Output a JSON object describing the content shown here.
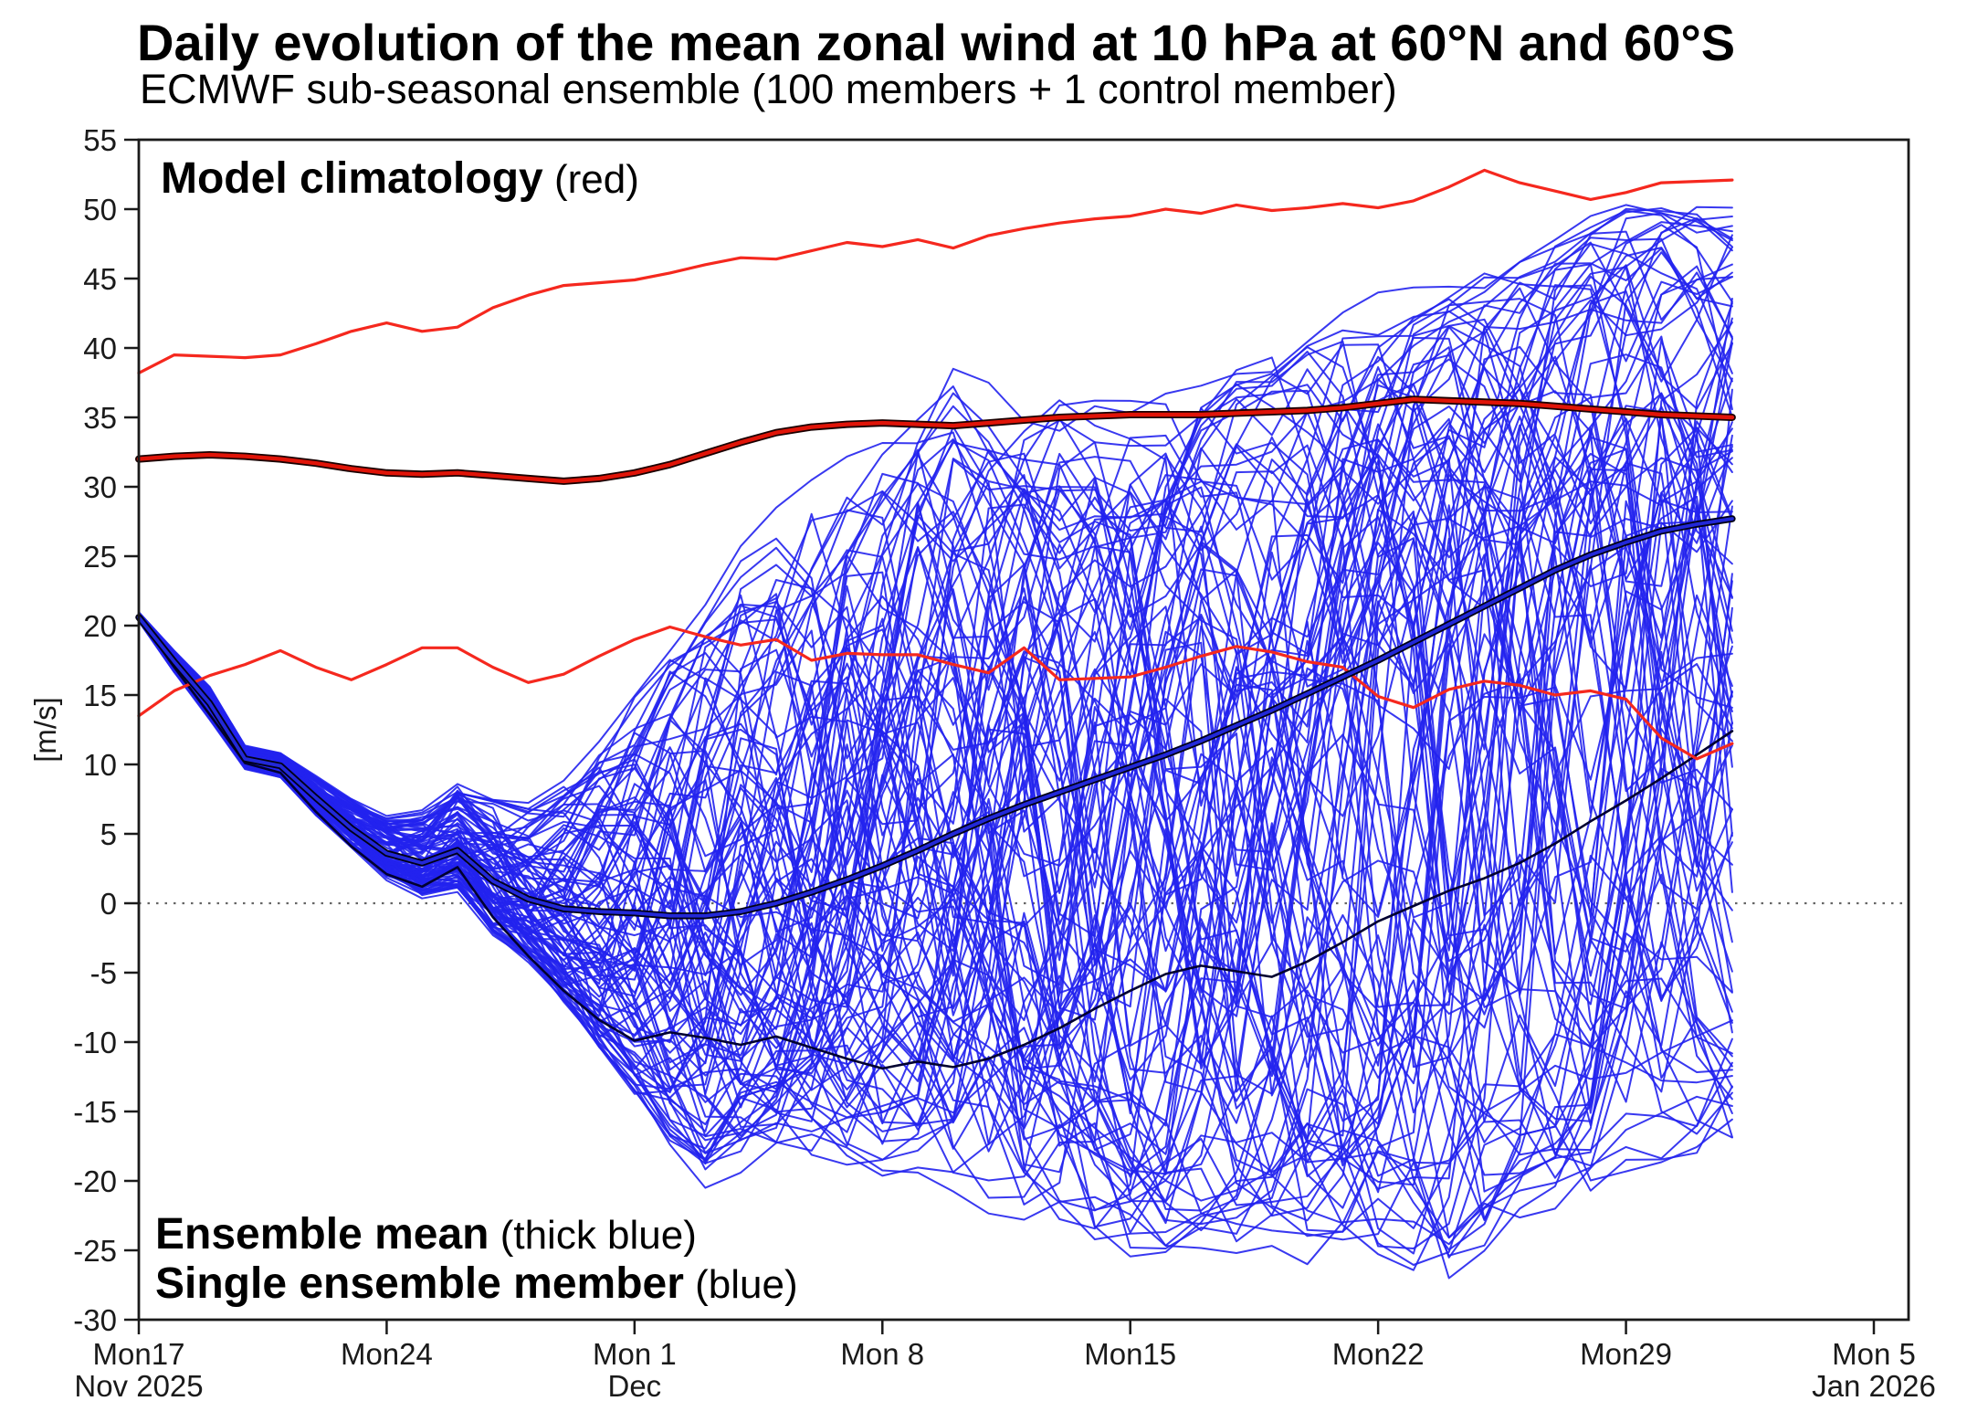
{
  "header": {
    "title": "Daily evolution of the mean zonal wind at 10 hPa at 60°N and 60°S",
    "subtitle": "ECMWF sub-seasonal ensemble (100 members + 1 control member)"
  },
  "annotations": {
    "climatology": {
      "bold": "Model climatology",
      "normal": " (red)"
    },
    "mean": {
      "bold": "Ensemble mean",
      "normal": " (thick blue)"
    },
    "member": {
      "bold": "Single ensemble member",
      "normal": " (blue)"
    }
  },
  "chart_data": {
    "type": "line",
    "title": "Daily evolution of the mean zonal wind at 10 hPa at 60°N and 60°S",
    "subtitle": "ECMWF sub-seasonal ensemble (100 members + 1 control member)",
    "xlabel": "",
    "ylabel": "[m/s]",
    "ylim": [
      -30,
      55
    ],
    "grid": false,
    "zero_line": true,
    "legend_position": "inside-annotations",
    "start_date_label": "Mon 17 Nov 2025",
    "x_range_days": 49,
    "forecast_days": 46,
    "y_ticks": [
      55,
      50,
      45,
      40,
      35,
      30,
      25,
      20,
      15,
      10,
      5,
      0,
      -5,
      -10,
      -15,
      -20,
      -25,
      -30
    ],
    "x_ticks": [
      {
        "day": 0,
        "line1": "Mon17",
        "line2": "Nov 2025"
      },
      {
        "day": 7,
        "line1": "Mon24",
        "line2": ""
      },
      {
        "day": 14,
        "line1": "Mon 1",
        "line2": "Dec"
      },
      {
        "day": 21,
        "line1": "Mon 8",
        "line2": ""
      },
      {
        "day": 28,
        "line1": "Mon15",
        "line2": ""
      },
      {
        "day": 35,
        "line1": "Mon22",
        "line2": ""
      },
      {
        "day": 42,
        "line1": "Mon29",
        "line2": ""
      },
      {
        "day": 49,
        "line1": "Mon 5",
        "line2": "Jan 2026"
      }
    ],
    "series": {
      "climatology_upper": {
        "name": "Model climatology upper percentile",
        "values": [
          38.2,
          39.5,
          39.4,
          39.3,
          39.5,
          40.3,
          41.2,
          41.8,
          41.2,
          41.5,
          42.9,
          43.8,
          44.5,
          44.7,
          44.9,
          45.4,
          46.0,
          46.5,
          46.4,
          47.0,
          47.6,
          47.3,
          47.8,
          47.2,
          48.1,
          48.6,
          49.0,
          49.3,
          49.5,
          50.0,
          49.7,
          50.3,
          49.9,
          50.1,
          50.4,
          50.1,
          50.6,
          51.6,
          52.8,
          51.9,
          51.3,
          50.7,
          51.2,
          51.9,
          52.0,
          52.1
        ]
      },
      "climatology_median": {
        "name": "Model climatology median",
        "values": [
          32.0,
          32.2,
          32.3,
          32.2,
          32.0,
          31.7,
          31.3,
          31.0,
          30.9,
          31.0,
          30.8,
          30.6,
          30.4,
          30.6,
          31.0,
          31.6,
          32.4,
          33.2,
          33.9,
          34.3,
          34.5,
          34.6,
          34.5,
          34.4,
          34.6,
          34.8,
          35.0,
          35.1,
          35.2,
          35.2,
          35.2,
          35.3,
          35.4,
          35.5,
          35.7,
          36.0,
          36.3,
          36.2,
          36.1,
          36.0,
          35.8,
          35.6,
          35.4,
          35.2,
          35.1,
          35.0
        ]
      },
      "climatology_lower": {
        "name": "Model climatology lower percentile",
        "values": [
          13.5,
          15.3,
          16.4,
          17.2,
          18.2,
          17.0,
          16.1,
          17.2,
          18.4,
          18.4,
          17.0,
          15.9,
          16.5,
          17.8,
          19.0,
          19.9,
          19.2,
          18.6,
          19.0,
          17.5,
          18.0,
          17.9,
          17.9,
          17.2,
          16.6,
          18.4,
          16.1,
          16.2,
          16.3,
          17.0,
          17.8,
          18.5,
          18.1,
          17.4,
          17.0,
          14.9,
          14.1,
          15.4,
          16.0,
          15.7,
          15.0,
          15.3,
          14.7,
          11.9,
          10.4,
          11.5
        ]
      },
      "ensemble_mean": {
        "name": "Ensemble mean",
        "values": [
          20.6,
          17.4,
          14.4,
          10.4,
          9.9,
          7.6,
          5.4,
          3.6,
          2.9,
          3.8,
          1.6,
          0.3,
          -0.4,
          -0.6,
          -0.7,
          -0.9,
          -0.9,
          -0.6,
          0.0,
          0.8,
          1.7,
          2.7,
          3.8,
          5.0,
          6.1,
          7.1,
          8.0,
          8.9,
          9.8,
          10.7,
          11.7,
          12.8,
          13.9,
          15.1,
          16.3,
          17.5,
          18.8,
          20.1,
          21.4,
          22.7,
          24.0,
          25.1,
          26.0,
          26.8,
          27.3,
          27.7
        ]
      },
      "control_member": {
        "name": "Control member",
        "values": [
          20.6,
          17.0,
          13.6,
          10.1,
          9.4,
          6.6,
          4.1,
          2.1,
          1.2,
          2.6,
          -1.0,
          -3.8,
          -6.3,
          -8.4,
          -9.9,
          -9.3,
          -9.7,
          -10.2,
          -9.6,
          -10.4,
          -11.2,
          -11.9,
          -11.4,
          -11.8,
          -11.2,
          -10.2,
          -9.0,
          -7.6,
          -6.3,
          -5.1,
          -4.5,
          -4.9,
          -5.3,
          -4.2,
          -2.8,
          -1.3,
          -0.2,
          0.9,
          1.8,
          2.9,
          4.3,
          5.9,
          7.4,
          9.0,
          10.7,
          12.4
        ]
      }
    },
    "ensemble": {
      "n_members": 100,
      "seed": 20251117,
      "envelope_min": [
        20.3,
        16.6,
        13.2,
        9.6,
        9.0,
        6.2,
        3.9,
        1.6,
        0.2,
        0.8,
        -2.5,
        -4.5,
        -7.5,
        -11.0,
        -14.5,
        -18.0,
        -20.5,
        -19.5,
        -18.5,
        -19.0,
        -20.0,
        -20.5,
        -21.0,
        -22.5,
        -23.0,
        -24.0,
        -24.5,
        -25.5,
        -26.5,
        -26.5,
        -25.5,
        -26.0,
        -25.0,
        -26.0,
        -27.0,
        -27.5,
        -28.0,
        -28.5,
        -26.0,
        -23.0,
        -22.0,
        -22.0,
        -20.0,
        -19.5,
        -19.0,
        -19.0
      ],
      "envelope_max": [
        21.0,
        18.2,
        15.6,
        11.4,
        10.9,
        9.2,
        7.6,
        6.4,
        7.0,
        9.0,
        8.0,
        7.5,
        9.0,
        12.0,
        15.5,
        19.5,
        23.0,
        26.0,
        28.5,
        31.0,
        33.0,
        34.7,
        36.0,
        38.5,
        37.5,
        36.5,
        36.8,
        36.6,
        37.0,
        37.8,
        38.5,
        39.5,
        40.5,
        42.0,
        43.5,
        44.5,
        44.5,
        45.5,
        46.0,
        47.0,
        48.0,
        49.5,
        50.3,
        50.5,
        50.7,
        50.8
      ]
    },
    "colors": {
      "ensemble_member": "#2222ee",
      "control_member": "#000030",
      "ensemble_mean_core": "#2228d8",
      "ensemble_mean_edge": "#000018",
      "climatology": "#f5281e",
      "climatology_median_core": "#e01408",
      "climatology_median_edge": "#1a0000",
      "zero_line": "#666666",
      "axis": "#1a1a1a",
      "background": "#ffffff"
    }
  }
}
